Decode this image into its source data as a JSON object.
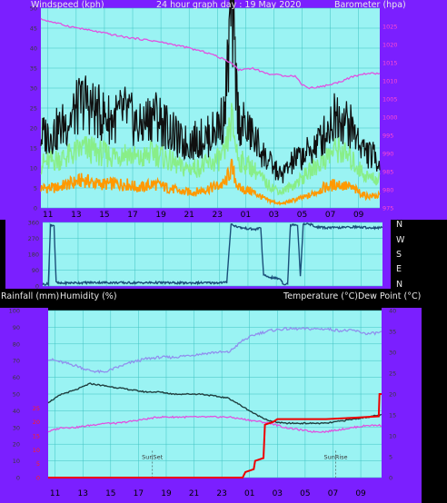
{
  "header": {
    "windspeed_label": "Windspeed (kph)",
    "title": "24 hour graph day : 19 May 2020",
    "barometer_label": "Barometer (hpa)"
  },
  "middle_header": {
    "rainfall_label": "Rainfall (mm)",
    "humidity_label": "Humidity (%)",
    "temperature_label": "Temperature (°C)Dew Point (°C)"
  },
  "compass": [
    "N",
    "W",
    "S",
    "E",
    "N"
  ],
  "colors": {
    "frame": "#7B1FFF",
    "plot_bg": "#9AF3F3",
    "grid": "#3FC3C3",
    "wind_gust": "#101010",
    "wind_avg": "#88EE88",
    "wind_low": "#FF9900",
    "barometer": "#E052E0",
    "direction": "#1A4F7A",
    "humidity": "#9090EE",
    "temperature": "#1F3F3F",
    "dew_point": "#E052E0",
    "rainfall": "#EE0000",
    "rain_ticks": "#FF2020"
  },
  "chart_data": [
    {
      "type": "line",
      "name": "wind-barometer",
      "x_ticks": [
        "11",
        "13",
        "15",
        "17",
        "19",
        "21",
        "23",
        "01",
        "03",
        "05",
        "07",
        "09"
      ],
      "wind_axis": {
        "ylim": [
          0,
          50
        ],
        "ticks": [
          "0",
          "5",
          "10",
          "15",
          "20",
          "25",
          "30",
          "35",
          "40",
          "45",
          "50"
        ]
      },
      "baro_axis": {
        "ylim": [
          975,
          1030
        ],
        "ticks": [
          "975",
          "980",
          "985",
          "990",
          "995",
          "1000",
          "1005",
          "1010",
          "1015",
          "1020",
          "1025"
        ]
      },
      "series": [
        {
          "key": "barometer",
          "axis": "baro",
          "x": [
            0,
            2,
            4,
            6,
            8,
            10,
            12,
            13.5,
            14,
            15,
            16,
            17,
            18,
            18.5,
            19,
            20,
            21,
            22,
            23,
            24
          ],
          "values": [
            1027,
            1025,
            1023.5,
            1022,
            1021,
            1019.5,
            1017.5,
            1015,
            1013,
            1013.5,
            1012,
            1011.5,
            1011.3,
            1009,
            1008,
            1008.5,
            1009.5,
            1011,
            1012,
            1012
          ]
        },
        {
          "key": "wind_gust",
          "axis": "wind",
          "x": [
            0,
            1,
            2,
            3,
            4,
            5,
            6,
            7,
            8,
            9,
            10,
            11,
            12,
            13,
            13.5,
            14,
            15,
            16,
            17,
            18,
            19,
            20,
            21,
            22,
            23,
            24
          ],
          "values": [
            18,
            19,
            22,
            27,
            24,
            22,
            24,
            20,
            24,
            20,
            16,
            17,
            18,
            23,
            50,
            22,
            18,
            12,
            8,
            12,
            14,
            18,
            24,
            20,
            14,
            12
          ]
        },
        {
          "key": "wind_avg",
          "axis": "wind",
          "x": [
            0,
            1,
            2,
            3,
            4,
            5,
            6,
            7,
            8,
            9,
            10,
            11,
            12,
            13,
            13.5,
            14,
            15,
            16,
            17,
            18,
            19,
            20,
            21,
            22,
            23,
            24
          ],
          "values": [
            11,
            12,
            13,
            15,
            14,
            13,
            14,
            12,
            14,
            12,
            10,
            10,
            11,
            13,
            22,
            12,
            10,
            6,
            4,
            6,
            9,
            12,
            15,
            12,
            8,
            7
          ]
        },
        {
          "key": "wind_low",
          "axis": "wind",
          "x": [
            0,
            1,
            2,
            3,
            4,
            5,
            6,
            7,
            8,
            9,
            10,
            11,
            12,
            13,
            13.5,
            14,
            15,
            16,
            17,
            18,
            19,
            20,
            21,
            22,
            23,
            24
          ],
          "values": [
            5,
            5,
            6,
            7,
            6,
            6,
            6,
            5,
            6,
            5,
            4,
            4,
            5,
            6,
            10,
            5,
            4,
            2,
            1,
            2,
            3,
            5,
            6,
            5,
            3,
            3
          ]
        }
      ]
    },
    {
      "type": "line",
      "name": "wind-direction",
      "ylim": [
        0,
        360
      ],
      "y_ticks": [
        "0",
        "90",
        "180",
        "270",
        "360"
      ],
      "series": [
        {
          "key": "direction",
          "x": [
            0,
            0.4,
            0.55,
            0.8,
            0.95,
            1.2,
            2,
            4,
            6,
            8,
            10,
            11,
            12,
            13,
            13.3,
            13.6,
            14,
            15,
            15.4,
            15.6,
            16,
            16.8,
            17,
            17.3,
            17.5,
            17.8,
            18,
            18.2,
            18.4,
            18.6,
            18.9,
            19,
            19.2,
            20,
            21,
            22,
            23,
            24
          ],
          "values": [
            10,
            12,
            345,
            345,
            20,
            15,
            18,
            20,
            18,
            19,
            17,
            18,
            18,
            20,
            350,
            340,
            330,
            320,
            330,
            60,
            50,
            40,
            10,
            15,
            345,
            350,
            345,
            60,
            345,
            355,
            345,
            350,
            335,
            330,
            330,
            335,
            330,
            330
          ]
        }
      ]
    },
    {
      "type": "line",
      "name": "temperature-humidity-rain",
      "hum_axis": {
        "ylim": [
          0,
          100
        ],
        "ticks": [
          "0",
          "10",
          "20",
          "30",
          "40",
          "50",
          "60",
          "70",
          "80",
          "90",
          "100"
        ]
      },
      "rain_axis": {
        "ylim": [
          0,
          60
        ],
        "ticks": [
          "0",
          "5",
          "10",
          "15",
          "20",
          "25"
        ]
      },
      "temp_axis": {
        "ylim": [
          0,
          40
        ],
        "ticks": [
          "0",
          "5",
          "10",
          "15",
          "20",
          "25",
          "30",
          "35",
          "40"
        ]
      },
      "annotations": [
        {
          "label": "SunSet",
          "x": 7.5
        },
        {
          "label": "SunRise",
          "x": 20.7
        }
      ],
      "series": [
        {
          "key": "humidity",
          "axis": "hum",
          "x": [
            0,
            1,
            2,
            3,
            4,
            5,
            6,
            7,
            8,
            9,
            10,
            11,
            12,
            13,
            14,
            15,
            16,
            17,
            18,
            19,
            20,
            21,
            22,
            23,
            24
          ],
          "values": [
            71,
            69,
            67,
            64,
            63,
            66,
            69,
            71,
            72,
            72,
            73,
            74,
            75,
            75,
            82,
            86,
            88,
            89,
            89,
            89,
            89,
            88,
            88,
            86,
            87
          ]
        },
        {
          "key": "temperature",
          "axis": "temp",
          "x": [
            0,
            1,
            2,
            3,
            4,
            5,
            6,
            7,
            8,
            9,
            10,
            11,
            12,
            13,
            14,
            15,
            16,
            17,
            18,
            19,
            20,
            21,
            22,
            23,
            24
          ],
          "values": [
            18,
            20,
            21,
            22.5,
            22,
            21.5,
            21,
            20.5,
            20.5,
            20,
            20,
            20,
            19.5,
            19,
            17,
            15,
            13.5,
            13,
            13,
            13,
            13,
            13.5,
            14,
            14.5,
            15
          ]
        },
        {
          "key": "dew_point",
          "axis": "temp",
          "x": [
            0,
            1,
            2,
            3,
            4,
            5,
            6,
            7,
            8,
            9,
            10,
            11,
            12,
            13,
            14,
            15,
            16,
            17,
            18,
            19,
            20,
            21,
            22,
            23,
            24
          ],
          "values": [
            11,
            12,
            12,
            12.5,
            13,
            13,
            13.5,
            14,
            14.5,
            14.5,
            14.5,
            14.5,
            14.5,
            14.5,
            14,
            13.5,
            13,
            12,
            11.5,
            11,
            11,
            11.5,
            12,
            12.5,
            12.5
          ]
        },
        {
          "key": "rainfall",
          "axis": "rain",
          "x": [
            0,
            14,
            14.1,
            14.2,
            14.8,
            14.9,
            15.5,
            15.6,
            16.2,
            16.5,
            18,
            18.5,
            20,
            22,
            23.8,
            23.85,
            24
          ],
          "values": [
            0,
            0,
            1,
            2,
            3,
            6,
            7,
            19,
            20,
            21,
            21,
            21,
            21,
            21.5,
            22,
            30,
            30
          ]
        }
      ]
    }
  ]
}
